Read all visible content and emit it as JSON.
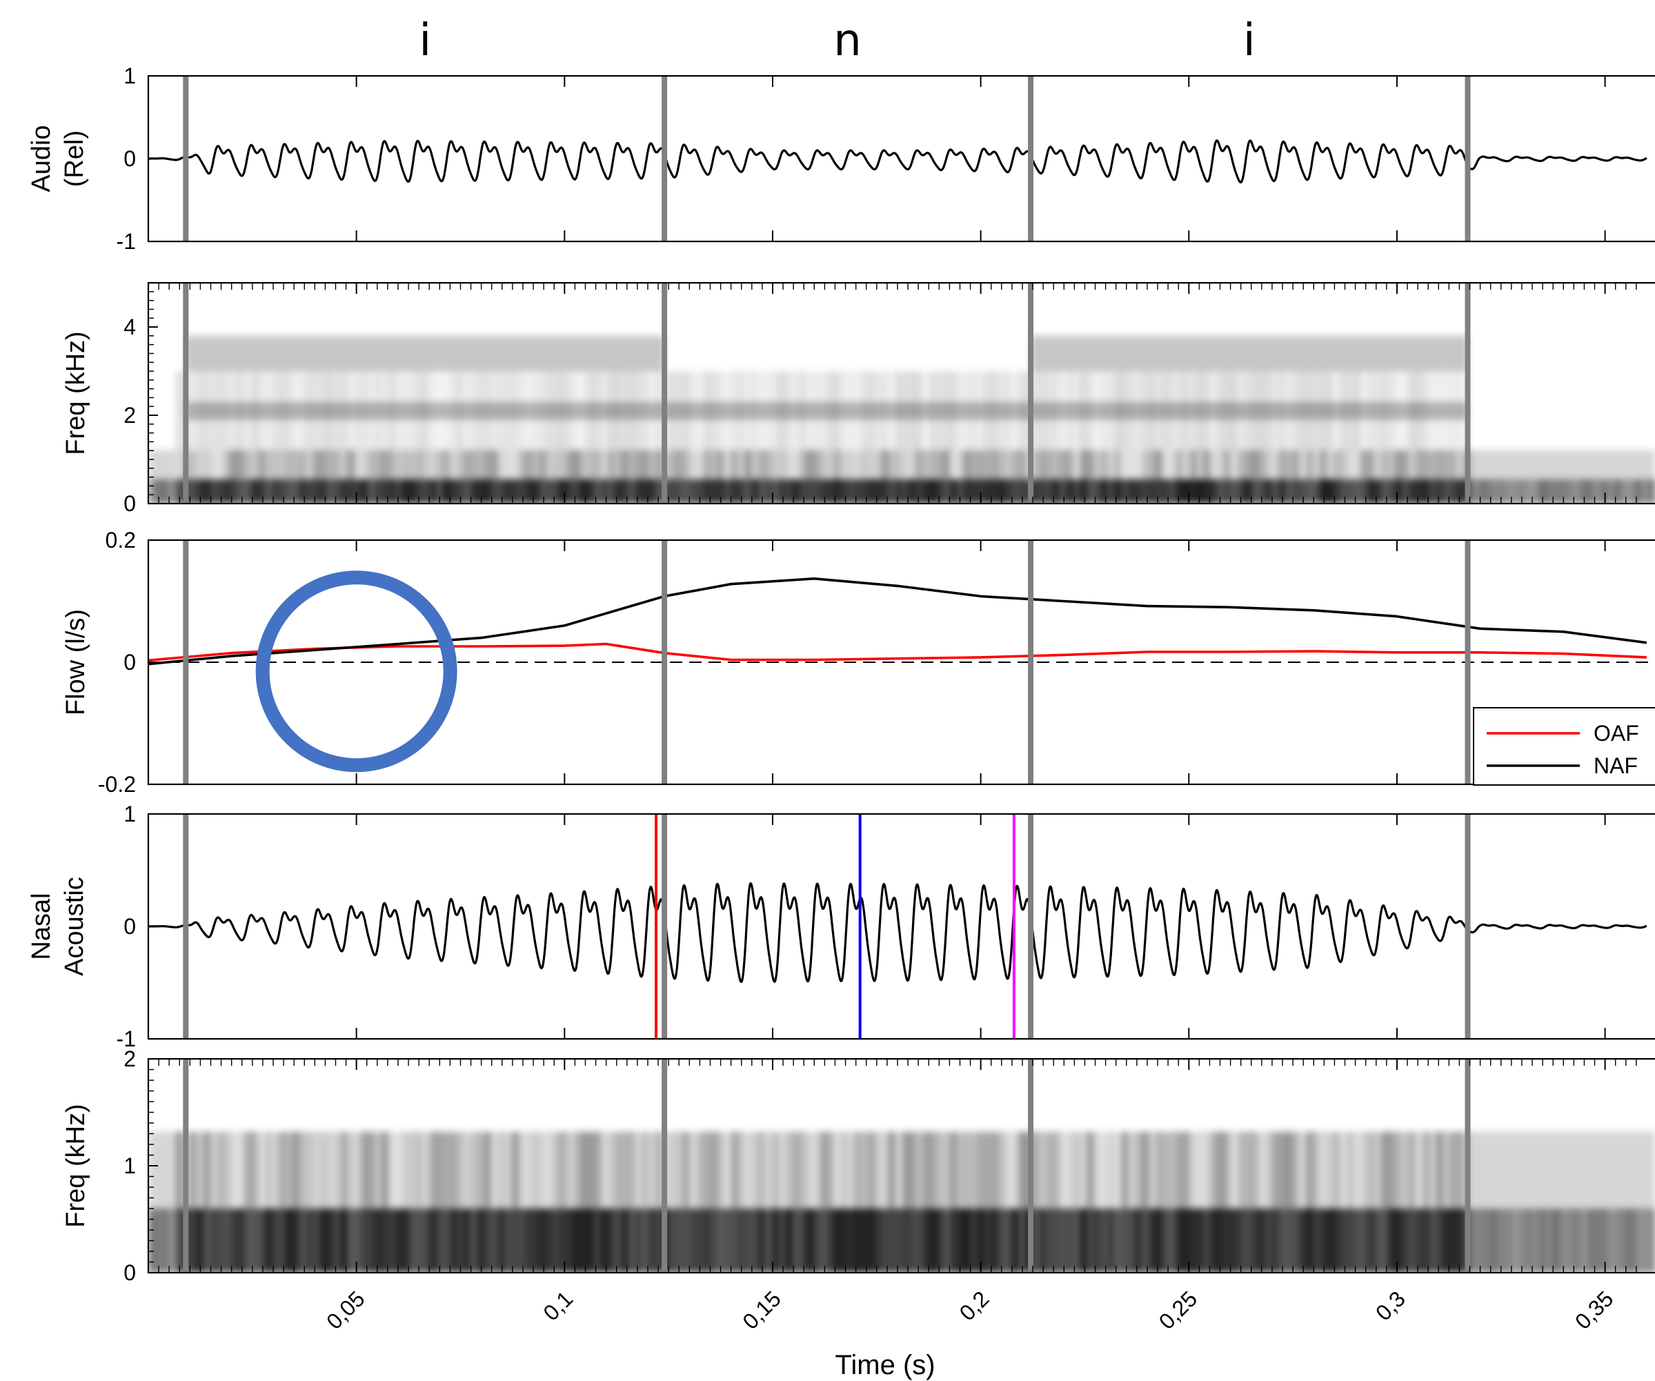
{
  "chart_data": {
    "type": "line",
    "x_range": [
      0,
      0.36
    ],
    "xlabel": "Time (s)",
    "x_ticks": [
      0.05,
      0.1,
      0.15,
      0.2,
      0.25,
      0.3,
      0.35
    ],
    "x_tick_labels": [
      "0,05",
      "0,1",
      "0,15",
      "0,2",
      "0,25",
      "0,3",
      "0,35"
    ],
    "segments": [
      {
        "label": "i",
        "start": 0.009,
        "end": 0.124
      },
      {
        "label": "n",
        "start": 0.124,
        "end": 0.212
      },
      {
        "label": "i",
        "start": 0.212,
        "end": 0.317
      }
    ],
    "boundaries": [
      0.009,
      0.124,
      0.212,
      0.317
    ],
    "panels": [
      {
        "id": "audio",
        "type": "line",
        "ylabel_lines": [
          "Audio",
          "(Rel)"
        ],
        "ylim": [
          -1,
          1
        ],
        "y_ticks": [
          -1,
          0,
          1
        ],
        "y_tick_labels": [
          "-1",
          "0",
          "1"
        ],
        "series": [
          {
            "name": "",
            "color": "#000000",
            "kind": "waveform",
            "f0_hz": 125,
            "envelope": [
              [
                0,
                0
              ],
              [
                0.009,
                0.02
              ],
              [
                0.015,
                0.18
              ],
              [
                0.06,
                0.26
              ],
              [
                0.124,
                0.22
              ],
              [
                0.15,
                0.12
              ],
              [
                0.185,
                0.12
              ],
              [
                0.212,
                0.16
              ],
              [
                0.26,
                0.27
              ],
              [
                0.3,
                0.2
              ],
              [
                0.317,
                0.18
              ],
              [
                0.32,
                0.03
              ],
              [
                0.36,
                0.02
              ]
            ]
          }
        ]
      },
      {
        "id": "oral_spectrogram",
        "type": "heatmap",
        "ylabel_lines": [
          "Freq (kHz)"
        ],
        "ylim": [
          0,
          5
        ],
        "y_ticks": [
          0,
          2,
          4
        ],
        "y_tick_labels": [
          "0",
          "2",
          "4"
        ],
        "formant_bands_khz": [
          {
            "start": 0.009,
            "end": 0.124,
            "centers": [
              0.25,
              2.1,
              3.2,
              3.6
            ]
          },
          {
            "start": 0.124,
            "end": 0.212,
            "centers": [
              0.25,
              2.1
            ]
          },
          {
            "start": 0.212,
            "end": 0.317,
            "centers": [
              0.25,
              2.1,
              3.2,
              3.6
            ]
          }
        ]
      },
      {
        "id": "flow",
        "type": "line",
        "ylabel_lines": [
          "Flow (l/s)"
        ],
        "ylim": [
          -0.2,
          0.2
        ],
        "y_ticks": [
          -0.2,
          0,
          0.2
        ],
        "y_tick_labels": [
          "-0.2",
          "0",
          "0.2"
        ],
        "legend_position": "bottom-right",
        "series": [
          {
            "name": "OAF",
            "color": "#ff0000",
            "x": [
              0,
              0.02,
              0.04,
              0.06,
              0.08,
              0.1,
              0.11,
              0.124,
              0.14,
              0.16,
              0.18,
              0.2,
              0.22,
              0.24,
              0.26,
              0.28,
              0.3,
              0.32,
              0.34,
              0.36
            ],
            "y": [
              0.003,
              0.015,
              0.022,
              0.026,
              0.026,
              0.027,
              0.03,
              0.015,
              0.004,
              0.004,
              0.006,
              0.008,
              0.012,
              0.017,
              0.017,
              0.018,
              0.016,
              0.016,
              0.014,
              0.008
            ]
          },
          {
            "name": "NAF",
            "color": "#000000",
            "x": [
              0,
              0.02,
              0.04,
              0.06,
              0.08,
              0.1,
              0.124,
              0.14,
              0.16,
              0.18,
              0.2,
              0.22,
              0.24,
              0.26,
              0.28,
              0.3,
              0.32,
              0.34,
              0.36
            ],
            "y": [
              -0.003,
              0.01,
              0.02,
              0.03,
              0.04,
              0.06,
              0.108,
              0.128,
              0.137,
              0.125,
              0.108,
              0.1,
              0.092,
              0.09,
              0.085,
              0.075,
              0.055,
              0.05,
              0.032
            ]
          }
        ],
        "reference_line": {
          "y": 0,
          "style": "dashed"
        },
        "annotation": {
          "shape": "circle",
          "color": "#4472c4",
          "center": [
            0.05,
            -0.015
          ]
        }
      },
      {
        "id": "nasal_acoustic",
        "type": "line",
        "ylabel_lines": [
          "Nasal",
          "Acoustic"
        ],
        "ylim": [
          -1,
          1
        ],
        "y_ticks": [
          -1,
          0,
          1
        ],
        "y_tick_labels": [
          "-1",
          "0",
          "1"
        ],
        "series": [
          {
            "name": "",
            "color": "#000000",
            "kind": "waveform",
            "f0_hz": 125,
            "envelope": [
              [
                0,
                0
              ],
              [
                0.009,
                0.01
              ],
              [
                0.012,
                0.08
              ],
              [
                0.03,
                0.14
              ],
              [
                0.06,
                0.26
              ],
              [
                0.1,
                0.36
              ],
              [
                0.12,
                0.42
              ],
              [
                0.14,
                0.46
              ],
              [
                0.18,
                0.45
              ],
              [
                0.212,
                0.43
              ],
              [
                0.25,
                0.4
              ],
              [
                0.28,
                0.34
              ],
              [
                0.3,
                0.2
              ],
              [
                0.317,
                0.07
              ],
              [
                0.32,
                0.02
              ],
              [
                0.36,
                0.01
              ]
            ]
          }
        ],
        "markers": [
          {
            "x": 0.122,
            "color": "#ff0000"
          },
          {
            "x": 0.171,
            "color": "#0000ff"
          },
          {
            "x": 0.208,
            "color": "#ff00ff"
          }
        ]
      },
      {
        "id": "nasal_spectrogram",
        "type": "heatmap",
        "ylabel_lines": [
          "Freq (kHz)"
        ],
        "ylim": [
          0,
          2
        ],
        "y_ticks": [
          0,
          1,
          2
        ],
        "y_tick_labels": [
          "0",
          "1",
          "2"
        ]
      }
    ]
  }
}
